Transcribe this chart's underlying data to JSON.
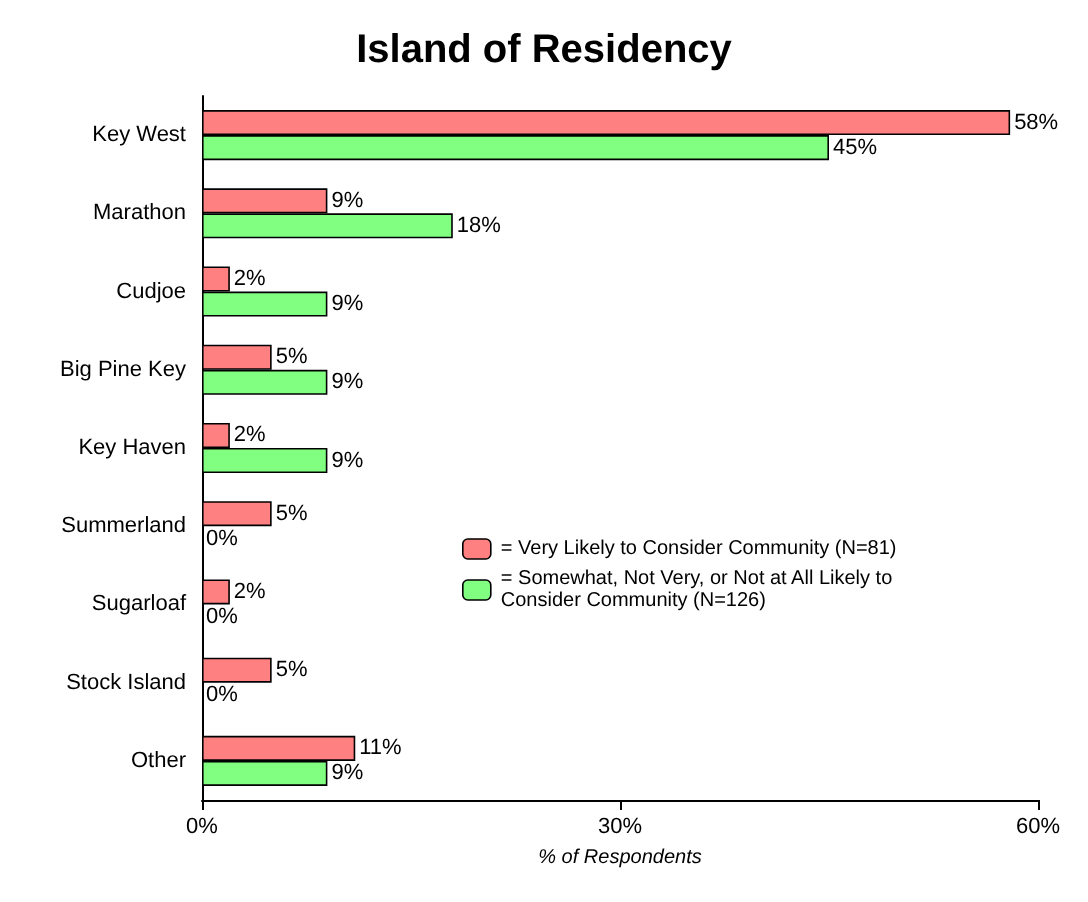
{
  "chart_data": {
    "type": "bar",
    "orientation": "horizontal",
    "title": "Island of Residency",
    "xlabel": "% of Respondents",
    "categories": [
      "Key West",
      "Marathon",
      "Cudjoe",
      "Big Pine Key",
      "Key Haven",
      "Summerland",
      "Sugarloaf",
      "Stock Island",
      "Other"
    ],
    "series": [
      {
        "name": "= Very Likely to Consider Community (N=81)",
        "color": "#ff8080",
        "values": [
          58,
          9,
          2,
          5,
          2,
          5,
          2,
          5,
          11
        ],
        "value_labels": [
          "58%",
          "9%",
          "2%",
          "5%",
          "2%",
          "5%",
          "2%",
          "5%",
          "11%"
        ]
      },
      {
        "name": "= Somewhat, Not Very, or Not at All Likely to Consider Community (N=126)",
        "color": "#80ff80",
        "values": [
          45,
          18,
          9,
          9,
          9,
          0,
          0,
          0,
          9
        ],
        "value_labels": [
          "45%",
          "18%",
          "9%",
          "9%",
          "9%",
          "0%",
          "0%",
          "0%",
          "9%"
        ]
      }
    ],
    "xlim": [
      0,
      60
    ],
    "xticks": [
      {
        "value": 0,
        "label": "0%"
      },
      {
        "value": 30,
        "label": "30%"
      },
      {
        "value": 60,
        "label": "60%"
      }
    ],
    "grid": false,
    "legend": "right"
  }
}
